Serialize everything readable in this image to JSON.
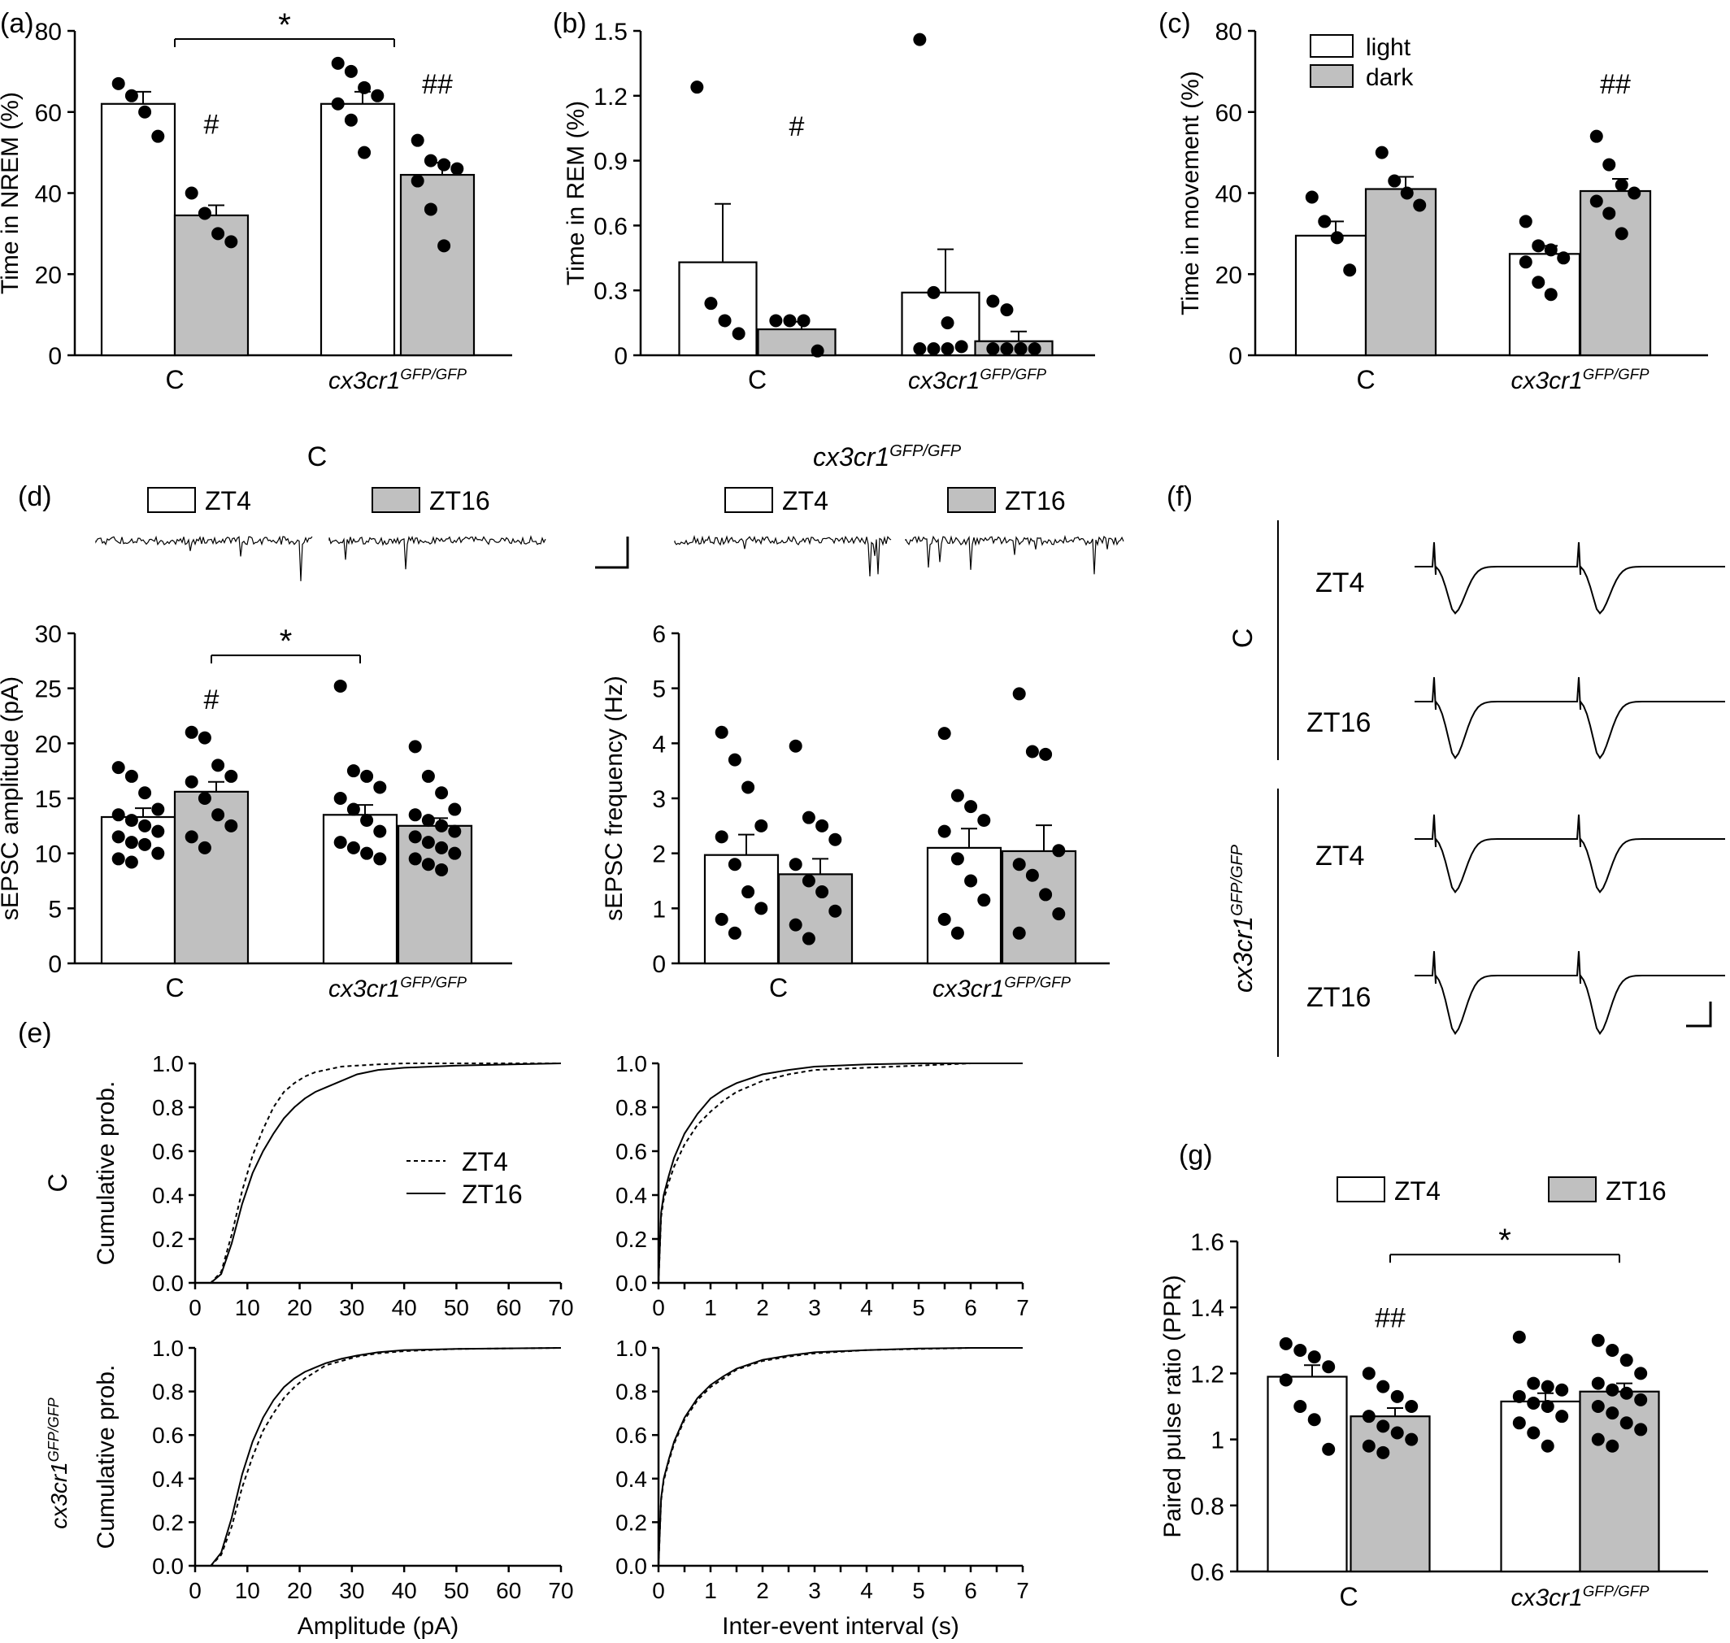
{
  "panel_labels": [
    "(a)",
    "(b)",
    "(c)",
    "(d)",
    "(e)",
    "(f)",
    "(g)"
  ],
  "colors": {
    "light_bar": "#ffffff",
    "dark_bar": "#c0c0c0",
    "ink": "#000000"
  },
  "groups": [
    "C",
    "cx3cr1",
    "GFP/GFP"
  ],
  "legends": {
    "c": [
      "light",
      "dark"
    ],
    "zt": [
      "ZT4",
      "ZT16"
    ]
  },
  "header_C": "C",
  "header_cx3": "cx3cr1",
  "header_cx3_sup": "GFP/GFP",
  "f_rows": [
    "ZT4",
    "ZT16",
    "ZT4",
    "ZT16"
  ],
  "f_groups": [
    "C",
    "cx3cr1",
    "GFP/GFP"
  ],
  "e_row_labels": [
    "C",
    "cx3cr1",
    "GFP/GFP"
  ],
  "chart_data": [
    {
      "id": "a",
      "type": "bar",
      "ylabel": "Time in NREM (%)",
      "ylim": [
        0,
        80
      ],
      "yticks": [
        0,
        20,
        40,
        60,
        80
      ],
      "bars": [
        {
          "group": "C",
          "condition": "light",
          "mean": 62,
          "sem": 3,
          "points": [
            67,
            64,
            60,
            54
          ]
        },
        {
          "group": "C",
          "condition": "dark",
          "mean": 34.5,
          "sem": 2.5,
          "points": [
            40,
            35,
            30,
            28
          ]
        },
        {
          "group": "cx3cr1 GFP/GFP",
          "condition": "light",
          "mean": 62,
          "sem": 3,
          "points": [
            72,
            70,
            66,
            64,
            62,
            58,
            50
          ]
        },
        {
          "group": "cx3cr1 GFP/GFP",
          "condition": "dark",
          "mean": 44.5,
          "sem": 3,
          "points": [
            53,
            48,
            47,
            46,
            43,
            36,
            27
          ]
        }
      ],
      "annotations": [
        {
          "text": "#",
          "at": "C dark",
          "value": 57
        },
        {
          "text": "##",
          "at": "cx3 dark",
          "value": 67
        },
        {
          "text": "*",
          "between": [
            "C light",
            "cx3 light"
          ],
          "value": 78
        }
      ]
    },
    {
      "id": "b",
      "type": "bar",
      "ylabel": "Time in REM (%)",
      "ylim": [
        0,
        1.5
      ],
      "yticks": [
        0,
        0.3,
        0.6,
        0.9,
        1.2,
        1.5
      ],
      "bars": [
        {
          "group": "C",
          "condition": "light",
          "mean": 0.43,
          "sem": 0.27,
          "points": [
            1.24,
            0.24,
            0.16,
            0.1
          ]
        },
        {
          "group": "C",
          "condition": "dark",
          "mean": 0.12,
          "sem": 0.035,
          "points": [
            0.16,
            0.16,
            0.16,
            0.02
          ]
        },
        {
          "group": "cx3cr1 GFP/GFP",
          "condition": "light",
          "mean": 0.29,
          "sem": 0.2,
          "points": [
            1.46,
            0.29,
            0.15,
            0.04,
            0.03,
            0.03,
            0.03
          ]
        },
        {
          "group": "cx3cr1 GFP/GFP",
          "condition": "dark",
          "mean": 0.065,
          "sem": 0.045,
          "points": [
            0.25,
            0.21,
            0.03,
            0.03,
            0.03,
            0.03,
            0.03
          ]
        }
      ],
      "annotations": [
        {
          "text": "#",
          "at": "C dark",
          "value": 1.06
        }
      ]
    },
    {
      "id": "c",
      "type": "bar",
      "ylabel": "Time in movement (%)",
      "ylim": [
        0,
        80
      ],
      "yticks": [
        0,
        20,
        40,
        60,
        80
      ],
      "legend": [
        "light",
        "dark"
      ],
      "bars": [
        {
          "group": "C",
          "condition": "light",
          "mean": 29.5,
          "sem": 3.5,
          "points": [
            39,
            33,
            29,
            21
          ]
        },
        {
          "group": "C",
          "condition": "dark",
          "mean": 41,
          "sem": 3,
          "points": [
            50,
            43,
            40,
            37
          ]
        },
        {
          "group": "cx3cr1 GFP/GFP",
          "condition": "light",
          "mean": 25,
          "sem": 2,
          "points": [
            33,
            27,
            26,
            24,
            23,
            18,
            15
          ]
        },
        {
          "group": "cx3cr1 GFP/GFP",
          "condition": "dark",
          "mean": 40.5,
          "sem": 3,
          "points": [
            54,
            47,
            42,
            40,
            38,
            35,
            30
          ]
        }
      ],
      "annotations": [
        {
          "text": "##",
          "at": "cx3 dark",
          "value": 67
        }
      ]
    },
    {
      "id": "d1",
      "type": "bar",
      "ylabel": "sEPSC amplitude (pA)",
      "ylim": [
        0,
        30
      ],
      "yticks": [
        0,
        5,
        10,
        15,
        20,
        25,
        30
      ],
      "legend": [
        "ZT4",
        "ZT16"
      ],
      "bars": [
        {
          "group": "C",
          "condition": "ZT4",
          "mean": 13.3,
          "sem": 0.8,
          "points": [
            17.8,
            17,
            15.5,
            14,
            13.5,
            13,
            12.5,
            12,
            11.5,
            11,
            10.8,
            10,
            9.5,
            9.2
          ]
        },
        {
          "group": "C",
          "condition": "ZT16",
          "mean": 15.6,
          "sem": 0.9,
          "points": [
            21,
            20.5,
            18,
            17,
            16.5,
            15,
            13.5,
            12.5,
            11.5,
            10.5
          ]
        },
        {
          "group": "cx3cr1 GFP/GFP",
          "condition": "ZT4",
          "mean": 13.5,
          "sem": 0.9,
          "points": [
            25.2,
            17.5,
            17,
            16,
            15,
            14,
            13,
            12,
            11,
            10.5,
            10,
            9.5
          ]
        },
        {
          "group": "cx3cr1 GFP/GFP",
          "condition": "ZT16",
          "mean": 12.5,
          "sem": 0.7,
          "points": [
            19.7,
            17,
            15.5,
            14,
            13.5,
            13,
            12.5,
            12,
            11.5,
            11,
            10.5,
            10,
            9.5,
            9,
            8.5
          ]
        }
      ],
      "annotations": [
        {
          "text": "#",
          "at": "C ZT16",
          "value": 24
        },
        {
          "text": "*",
          "between": [
            "C ZT16",
            "cx3 ZT4"
          ],
          "value": 28
        }
      ]
    },
    {
      "id": "d2",
      "type": "bar",
      "ylabel": "sEPSC frequency (Hz)",
      "ylim": [
        0,
        6
      ],
      "yticks": [
        0,
        1,
        2,
        3,
        4,
        5,
        6
      ],
      "legend": [
        "ZT4",
        "ZT16"
      ],
      "bars": [
        {
          "group": "C",
          "condition": "ZT4",
          "mean": 1.97,
          "sem": 0.37,
          "points": [
            4.2,
            3.7,
            3.2,
            2.5,
            2.3,
            1.8,
            1.3,
            1.0,
            0.8,
            0.55
          ]
        },
        {
          "group": "C",
          "condition": "ZT16",
          "mean": 1.62,
          "sem": 0.28,
          "points": [
            3.95,
            2.65,
            2.5,
            2.25,
            1.8,
            1.5,
            1.3,
            0.95,
            0.7,
            0.45
          ]
        },
        {
          "group": "cx3cr1 GFP/GFP",
          "condition": "ZT4",
          "mean": 2.1,
          "sem": 0.35,
          "points": [
            4.18,
            3.05,
            2.85,
            2.6,
            2.4,
            1.9,
            1.5,
            1.15,
            0.8,
            0.55
          ]
        },
        {
          "group": "cx3cr1 GFP/GFP",
          "condition": "ZT16",
          "mean": 2.04,
          "sem": 0.47,
          "points": [
            4.9,
            3.85,
            3.8,
            2.05,
            1.8,
            1.6,
            1.25,
            0.9,
            0.55
          ]
        }
      ]
    },
    {
      "id": "e1",
      "type": "line",
      "ylabel": "Cumulative prob.",
      "xlim": [
        0,
        70
      ],
      "ylim": [
        0,
        1
      ],
      "xticks": [
        0,
        10,
        20,
        30,
        40,
        50,
        60,
        70
      ],
      "yticks": [
        0,
        0.2,
        0.4,
        0.6,
        0.8,
        1.0
      ],
      "legend": [
        "ZT4",
        "ZT16"
      ],
      "series": [
        {
          "name": "ZT4",
          "dash": true,
          "x": [
            0,
            3,
            5,
            7,
            9,
            11,
            13,
            15,
            17,
            19,
            21,
            23,
            25,
            28,
            31,
            35,
            40,
            50,
            70
          ],
          "y": [
            0,
            0,
            0.05,
            0.22,
            0.42,
            0.58,
            0.7,
            0.8,
            0.87,
            0.91,
            0.94,
            0.96,
            0.97,
            0.985,
            0.99,
            0.995,
            1,
            1,
            1
          ]
        },
        {
          "name": "ZT16",
          "dash": false,
          "x": [
            0,
            3,
            5,
            7,
            9,
            11,
            13,
            15,
            17,
            19,
            21,
            23,
            25,
            28,
            31,
            35,
            40,
            50,
            70
          ],
          "y": [
            0,
            0,
            0.04,
            0.18,
            0.36,
            0.5,
            0.6,
            0.68,
            0.75,
            0.8,
            0.84,
            0.87,
            0.89,
            0.92,
            0.95,
            0.97,
            0.98,
            0.99,
            1
          ]
        }
      ]
    },
    {
      "id": "e2",
      "type": "line",
      "ylabel": "",
      "xlim": [
        0,
        7
      ],
      "ylim": [
        0,
        1
      ],
      "xticks": [
        0,
        0.5,
        1,
        1.5,
        2,
        2.5,
        3,
        3.5,
        4,
        4.5,
        5,
        5.5,
        6,
        6.5,
        7
      ],
      "xticklabels": [
        "0",
        "",
        "1",
        "",
        "2",
        "",
        "3",
        "",
        "4",
        "",
        "5",
        "",
        "6",
        "",
        "7"
      ],
      "yticks": [
        0,
        0.2,
        0.4,
        0.6,
        0.8,
        1.0
      ],
      "series": [
        {
          "name": "ZT4",
          "dash": true,
          "x": [
            0,
            0.05,
            0.1,
            0.2,
            0.3,
            0.5,
            0.75,
            1,
            1.25,
            1.5,
            2,
            2.5,
            3,
            4,
            5,
            6,
            7
          ],
          "y": [
            0,
            0.3,
            0.38,
            0.46,
            0.53,
            0.63,
            0.72,
            0.78,
            0.83,
            0.87,
            0.92,
            0.95,
            0.97,
            0.98,
            0.99,
            1,
            1
          ]
        },
        {
          "name": "ZT16",
          "dash": false,
          "x": [
            0,
            0.05,
            0.1,
            0.2,
            0.3,
            0.5,
            0.75,
            1,
            1.25,
            1.5,
            2,
            2.5,
            3,
            4,
            5,
            6,
            7
          ],
          "y": [
            0,
            0.32,
            0.4,
            0.49,
            0.57,
            0.68,
            0.77,
            0.84,
            0.88,
            0.91,
            0.95,
            0.97,
            0.985,
            0.995,
            1,
            1,
            1
          ]
        }
      ]
    },
    {
      "id": "e3",
      "type": "line",
      "ylabel": "Cumulative prob.",
      "xlabel": "Amplitude (pA)",
      "xlim": [
        0,
        70
      ],
      "ylim": [
        0,
        1
      ],
      "xticks": [
        0,
        10,
        20,
        30,
        40,
        50,
        60,
        70
      ],
      "yticks": [
        0,
        0.2,
        0.4,
        0.6,
        0.8,
        1.0
      ],
      "series": [
        {
          "name": "ZT4",
          "dash": true,
          "x": [
            0,
            3,
            5,
            7,
            9,
            11,
            13,
            15,
            17,
            19,
            21,
            23,
            25,
            28,
            31,
            35,
            40,
            50,
            70
          ],
          "y": [
            0,
            0,
            0.05,
            0.18,
            0.36,
            0.5,
            0.62,
            0.7,
            0.77,
            0.82,
            0.86,
            0.89,
            0.92,
            0.94,
            0.96,
            0.975,
            0.985,
            0.995,
            1
          ]
        },
        {
          "name": "ZT16",
          "dash": false,
          "x": [
            0,
            3,
            5,
            7,
            9,
            11,
            13,
            15,
            17,
            19,
            21,
            23,
            25,
            28,
            31,
            35,
            40,
            50,
            70
          ],
          "y": [
            0,
            0,
            0.06,
            0.22,
            0.42,
            0.57,
            0.68,
            0.76,
            0.82,
            0.86,
            0.89,
            0.91,
            0.93,
            0.95,
            0.965,
            0.98,
            0.99,
            0.995,
            1
          ]
        }
      ]
    },
    {
      "id": "e4",
      "type": "line",
      "ylabel": "",
      "xlabel": "Inter-event interval (s)",
      "xlim": [
        0,
        7
      ],
      "ylim": [
        0,
        1
      ],
      "xticks": [
        0,
        0.5,
        1,
        1.5,
        2,
        2.5,
        3,
        3.5,
        4,
        4.5,
        5,
        5.5,
        6,
        6.5,
        7
      ],
      "xticklabels": [
        "0",
        "",
        "1",
        "",
        "2",
        "",
        "3",
        "",
        "4",
        "",
        "5",
        "",
        "6",
        "",
        "7"
      ],
      "yticks": [
        0,
        0.2,
        0.4,
        0.6,
        0.8,
        1.0
      ],
      "series": [
        {
          "name": "ZT4",
          "dash": true,
          "x": [
            0,
            0.05,
            0.1,
            0.2,
            0.3,
            0.5,
            0.75,
            1,
            1.25,
            1.5,
            2,
            2.5,
            3,
            4,
            5,
            6,
            7
          ],
          "y": [
            0,
            0.3,
            0.39,
            0.48,
            0.56,
            0.67,
            0.76,
            0.82,
            0.86,
            0.9,
            0.94,
            0.96,
            0.975,
            0.99,
            0.995,
            1,
            1
          ]
        },
        {
          "name": "ZT16",
          "dash": false,
          "x": [
            0,
            0.05,
            0.1,
            0.2,
            0.3,
            0.5,
            0.75,
            1,
            1.25,
            1.5,
            2,
            2.5,
            3,
            4,
            5,
            6,
            7
          ],
          "y": [
            0,
            0.31,
            0.4,
            0.49,
            0.57,
            0.68,
            0.77,
            0.83,
            0.87,
            0.905,
            0.945,
            0.965,
            0.98,
            0.99,
            0.997,
            1,
            1
          ]
        }
      ]
    },
    {
      "id": "g",
      "type": "bar",
      "ylabel": "Paired pulse ratio (PPR)",
      "ylim": [
        0.6,
        1.6
      ],
      "yticks": [
        0.6,
        0.8,
        1.0,
        1.2,
        1.4,
        1.6
      ],
      "legend": [
        "ZT4",
        "ZT16"
      ],
      "bars": [
        {
          "group": "C",
          "condition": "ZT4",
          "mean": 1.19,
          "sem": 0.035,
          "points": [
            1.29,
            1.27,
            1.25,
            1.22,
            1.18,
            1.1,
            1.06,
            0.97
          ]
        },
        {
          "group": "C",
          "condition": "ZT16",
          "mean": 1.07,
          "sem": 0.025,
          "points": [
            1.2,
            1.16,
            1.13,
            1.1,
            1.07,
            1.04,
            1.02,
            1.0,
            0.98,
            0.96
          ]
        },
        {
          "group": "cx3cr1 GFP/GFP",
          "condition": "ZT4",
          "mean": 1.115,
          "sem": 0.025,
          "points": [
            1.31,
            1.17,
            1.16,
            1.15,
            1.13,
            1.11,
            1.1,
            1.07,
            1.05,
            1.02,
            0.98
          ]
        },
        {
          "group": "cx3cr1 GFP/GFP",
          "condition": "ZT16",
          "mean": 1.145,
          "sem": 0.025,
          "points": [
            1.3,
            1.27,
            1.24,
            1.2,
            1.17,
            1.15,
            1.14,
            1.12,
            1.1,
            1.08,
            1.05,
            1.03,
            1.0,
            0.98
          ]
        }
      ],
      "annotations": [
        {
          "text": "##",
          "at": "C ZT16",
          "value": 1.37
        },
        {
          "text": "*",
          "between": [
            "C ZT16",
            "cx3 ZT16"
          ],
          "value": 1.56
        }
      ]
    }
  ]
}
